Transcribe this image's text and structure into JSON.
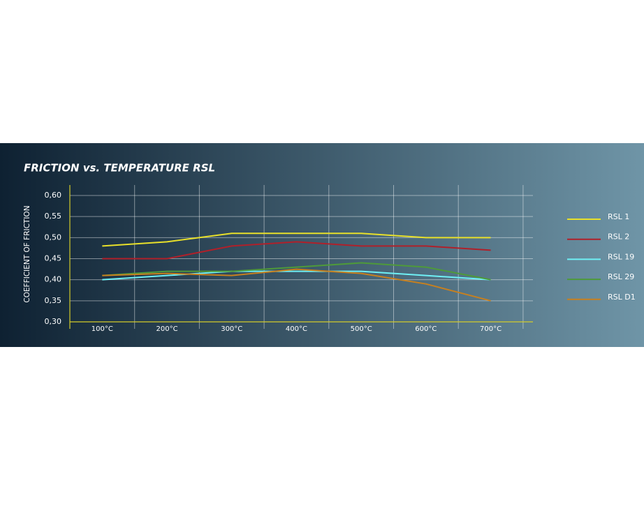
{
  "chart_data": {
    "type": "line",
    "title": "FRICTION vs. TEMPERATURE RSL",
    "y_label": "COEFFICIENT OF FRICTION",
    "categories": [
      "100°C",
      "200°C",
      "300°C",
      "400°C",
      "500°C",
      "600°C",
      "700°C"
    ],
    "series": [
      {
        "name": "RSL 1",
        "color": "#e8e02a",
        "values": [
          0.48,
          0.49,
          0.51,
          0.51,
          0.51,
          0.5,
          0.5
        ]
      },
      {
        "name": "RSL 2",
        "color": "#b0202a",
        "values": [
          0.45,
          0.45,
          0.48,
          0.49,
          0.48,
          0.48,
          0.47
        ]
      },
      {
        "name": "RSL 19",
        "color": "#6ff0f5",
        "values": [
          0.4,
          0.41,
          0.42,
          0.42,
          0.42,
          0.41,
          0.4
        ]
      },
      {
        "name": "RSL 29",
        "color": "#4e9a3a",
        "values": [
          0.41,
          0.42,
          0.42,
          0.43,
          0.44,
          0.43,
          0.4
        ]
      },
      {
        "name": "RSL D1",
        "color": "#c8801e",
        "values": [
          0.41,
          0.415,
          0.41,
          0.425,
          0.415,
          0.39,
          0.35
        ]
      }
    ],
    "ylim": [
      0.3,
      0.6
    ],
    "yticks": [
      {
        "value": 0.3,
        "label": "0,30"
      },
      {
        "value": 0.35,
        "label": "0,35"
      },
      {
        "value": 0.4,
        "label": "0,40"
      },
      {
        "value": 0.45,
        "label": "0,45"
      },
      {
        "value": 0.5,
        "label": "0,50"
      },
      {
        "value": 0.55,
        "label": "0,55"
      },
      {
        "value": 0.6,
        "label": "0,60"
      }
    ],
    "grid": true
  }
}
